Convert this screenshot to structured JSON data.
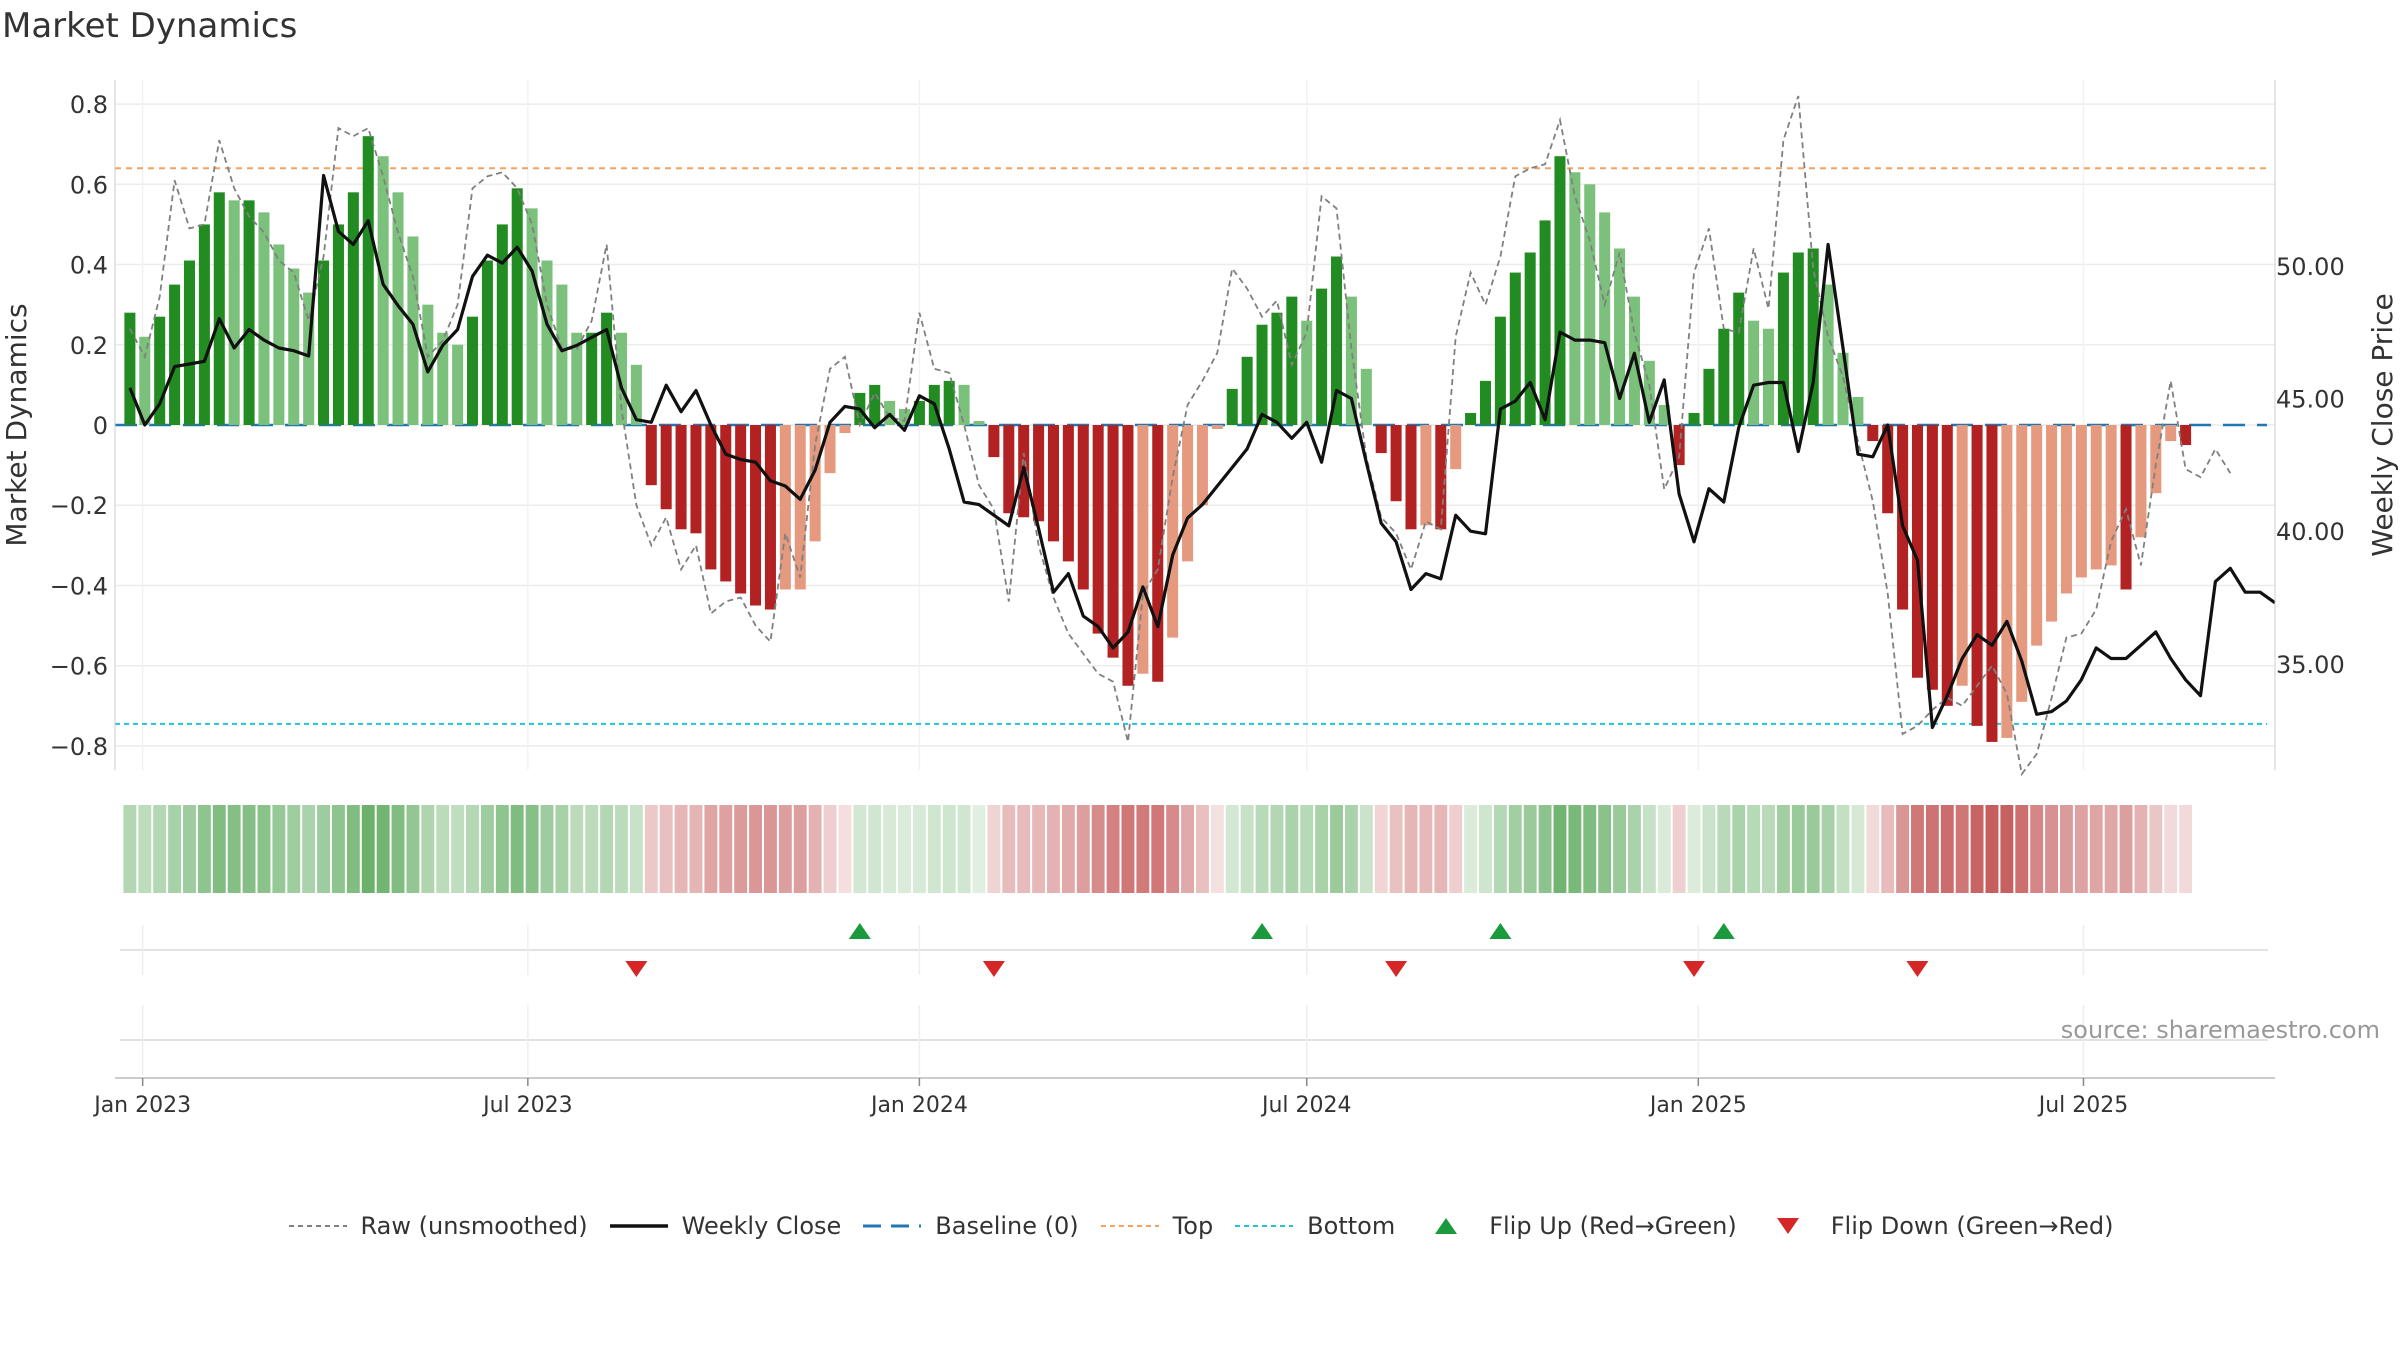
{
  "title": "Market Dynamics",
  "source": "source: sharemaestro.com",
  "colors": {
    "dark_green": "#228b22",
    "light_green": "#7bc17b",
    "dark_red": "#b22222",
    "light_red": "#e59a7f",
    "weekly_close": "#111111",
    "raw": "#808080",
    "baseline": "#1f77b4",
    "top": "#f4a261",
    "bottom": "#22c5d8",
    "flip_up": "#1a9a3c",
    "flip_down": "#d62728"
  },
  "legend": [
    {
      "key": "raw",
      "label": "Raw (unsmoothed)",
      "style": "raw"
    },
    {
      "key": "close",
      "label": "Weekly Close",
      "style": "close"
    },
    {
      "key": "baseline",
      "label": "Baseline (0)",
      "style": "baseline"
    },
    {
      "key": "top",
      "label": "Top",
      "style": "top"
    },
    {
      "key": "bottom",
      "label": "Bottom",
      "style": "bottom"
    },
    {
      "key": "flipup",
      "label": "Flip Up (Red→Green)",
      "style": "flipup"
    },
    {
      "key": "flipdown",
      "label": "Flip Down (Green→Red)",
      "style": "flipdown"
    }
  ],
  "chart_data": {
    "type": "bar",
    "title": "Market Dynamics",
    "ylabel_left": "Market Dynamics",
    "ylabel_right": "Weekly Close Price",
    "ylim_left": [
      -0.86,
      0.86
    ],
    "ylim_right": [
      31.0,
      57.0
    ],
    "y_ticks_left": [
      0.8,
      0.6,
      0.4,
      0.2,
      0,
      -0.2,
      -0.4,
      -0.6,
      -0.8
    ],
    "y_tick_labels_left": [
      "0.8",
      "0.6",
      "0.4",
      "0.2",
      "0",
      "−0.2",
      "−0.4",
      "−0.6",
      "−0.8"
    ],
    "y_ticks_right": [
      50,
      45,
      40,
      35
    ],
    "y_tick_labels_right": [
      "50.00",
      "45.00",
      "40.00",
      "35.00"
    ],
    "x_start": "2022-12-19",
    "x_end": "2025-09-29",
    "x_ticks": [
      "2023-01-01",
      "2023-07-01",
      "2024-01-01",
      "2024-07-01",
      "2025-01-01",
      "2025-07-01"
    ],
    "x_tick_labels": [
      "Jan 2023",
      "Jul 2023",
      "Jan 2024",
      "Jul 2024",
      "Jan 2025",
      "Jul 2025"
    ],
    "top_threshold": 0.64,
    "bottom_threshold": -0.745,
    "baseline": 0,
    "grid": true,
    "legend_position": "bottom",
    "series": [
      {
        "name": "Market Dynamics",
        "values": [
          0.28,
          0.22,
          0.27,
          0.35,
          0.41,
          0.5,
          0.58,
          0.56,
          0.56,
          0.53,
          0.45,
          0.39,
          0.33,
          0.41,
          0.5,
          0.58,
          0.72,
          0.67,
          0.58,
          0.47,
          0.3,
          0.23,
          0.2,
          0.27,
          0.41,
          0.5,
          0.59,
          0.54,
          0.41,
          0.35,
          0.23,
          0.23,
          0.28,
          0.23,
          0.15,
          -0.15,
          -0.21,
          -0.26,
          -0.27,
          -0.36,
          -0.39,
          -0.42,
          -0.45,
          -0.46,
          -0.41,
          -0.41,
          -0.29,
          -0.12,
          -0.02,
          0.08,
          0.1,
          0.06,
          0.04,
          0.06,
          0.1,
          0.11,
          0.1,
          0.01,
          -0.08,
          -0.22,
          -0.23,
          -0.24,
          -0.29,
          -0.34,
          -0.41,
          -0.52,
          -0.58,
          -0.65,
          -0.62,
          -0.64,
          -0.53,
          -0.34,
          -0.2,
          -0.01,
          0.09,
          0.17,
          0.25,
          0.28,
          0.32,
          0.26,
          0.34,
          0.42,
          0.32,
          0.14,
          -0.07,
          -0.19,
          -0.26,
          -0.25,
          -0.26,
          -0.11,
          0.03,
          0.11,
          0.27,
          0.38,
          0.43,
          0.51,
          0.67,
          0.63,
          0.6,
          0.53,
          0.44,
          0.32,
          0.16,
          0.05,
          -0.1,
          0.03,
          0.14,
          0.24,
          0.33,
          0.26,
          0.24,
          0.38,
          0.43,
          0.44,
          0.35,
          0.18,
          0.07,
          -0.04,
          -0.22,
          -0.46,
          -0.63,
          -0.66,
          -0.7,
          -0.65,
          -0.75,
          -0.79,
          -0.78,
          -0.69,
          -0.55,
          -0.49,
          -0.42,
          -0.38,
          -0.36,
          -0.35,
          -0.41,
          -0.28,
          -0.17,
          -0.04,
          -0.05
        ]
      }
    ],
    "weekly_close": [
      45.4,
      44.0,
      44.8,
      46.2,
      46.3,
      46.4,
      48.0,
      46.9,
      47.6,
      47.2,
      46.9,
      46.8,
      46.6,
      53.4,
      51.3,
      50.8,
      51.7,
      49.3,
      48.5,
      47.8,
      46.0,
      47.0,
      47.6,
      49.6,
      50.4,
      50.1,
      50.7,
      49.8,
      47.8,
      46.8,
      47.0,
      47.3,
      47.6,
      45.4,
      44.2,
      44.1,
      45.5,
      44.5,
      45.3,
      44.0,
      42.9,
      42.7,
      42.6,
      41.9,
      41.7,
      41.2,
      42.3,
      44.1,
      44.7,
      44.6,
      43.9,
      44.4,
      43.8,
      45.1,
      44.8,
      43.1,
      41.1,
      41.0,
      40.6,
      40.2,
      42.4,
      40.1,
      37.7,
      38.4,
      36.8,
      36.4,
      35.6,
      36.2,
      37.9,
      36.4,
      39.1,
      40.5,
      41.0,
      41.7,
      42.4,
      43.1,
      44.4,
      44.1,
      43.5,
      44.1,
      42.6,
      45.3,
      45.0,
      42.6,
      40.3,
      39.6,
      37.8,
      38.4,
      38.2,
      40.6,
      40.0,
      39.9,
      44.6,
      44.9,
      45.6,
      44.2,
      47.5,
      47.2,
      47.2,
      47.1,
      45.0,
      46.7,
      44.1,
      45.7,
      41.4,
      39.6,
      41.6,
      41.1,
      43.9,
      45.5,
      45.6,
      45.6,
      43.0,
      45.6,
      50.8,
      46.9,
      42.9,
      42.8,
      44.0,
      40.2,
      38.9,
      32.6,
      33.8,
      35.2,
      36.1,
      35.7,
      36.6,
      35.1,
      33.1,
      33.2,
      33.6,
      34.4,
      35.6,
      35.2,
      35.2,
      35.7,
      36.2,
      35.2,
      34.4,
      33.8,
      38.1,
      38.6,
      37.7,
      37.7,
      37.3
    ],
    "raw_unsmoothed": [
      0.24,
      0.17,
      0.32,
      0.61,
      0.49,
      0.5,
      0.71,
      0.59,
      0.52,
      0.48,
      0.41,
      0.38,
      0.26,
      0.42,
      0.74,
      0.72,
      0.74,
      0.62,
      0.48,
      0.37,
      0.17,
      0.21,
      0.3,
      0.59,
      0.62,
      0.63,
      0.59,
      0.5,
      0.3,
      0.19,
      0.19,
      0.26,
      0.45,
      0.04,
      -0.2,
      -0.3,
      -0.23,
      -0.36,
      -0.3,
      -0.47,
      -0.44,
      -0.43,
      -0.5,
      -0.54,
      -0.27,
      -0.38,
      -0.05,
      0.14,
      0.17,
      0.0,
      0.08,
      0.02,
      0.01,
      0.28,
      0.14,
      0.13,
      0.0,
      -0.15,
      -0.21,
      -0.44,
      -0.07,
      -0.3,
      -0.43,
      -0.52,
      -0.57,
      -0.62,
      -0.64,
      -0.79,
      -0.42,
      -0.36,
      -0.13,
      0.05,
      0.11,
      0.18,
      0.39,
      0.34,
      0.27,
      0.31,
      0.15,
      0.23,
      0.57,
      0.54,
      0.19,
      -0.08,
      -0.23,
      -0.27,
      -0.36,
      -0.24,
      -0.26,
      0.22,
      0.38,
      0.3,
      0.42,
      0.62,
      0.64,
      0.65,
      0.76,
      0.57,
      0.46,
      0.3,
      0.43,
      0.23,
      0.1,
      -0.16,
      -0.08,
      0.38,
      0.49,
      0.24,
      0.23,
      0.44,
      0.29,
      0.71,
      0.82,
      0.39,
      0.22,
      0.12,
      -0.04,
      -0.19,
      -0.42,
      -0.77,
      -0.75,
      -0.71,
      -0.68,
      -0.7,
      -0.65,
      -0.6,
      -0.67,
      -0.87,
      -0.82,
      -0.68,
      -0.53,
      -0.52,
      -0.46,
      -0.29,
      -0.21,
      -0.35,
      -0.1,
      0.11,
      -0.11,
      -0.13,
      -0.06,
      -0.12
    ],
    "flip_up_dates": [
      "2023-12-04",
      "2024-06-10",
      "2024-09-30",
      "2025-01-13"
    ],
    "flip_down_dates": [
      "2023-08-21",
      "2024-02-05",
      "2024-08-12",
      "2024-12-30",
      "2025-04-14"
    ]
  }
}
